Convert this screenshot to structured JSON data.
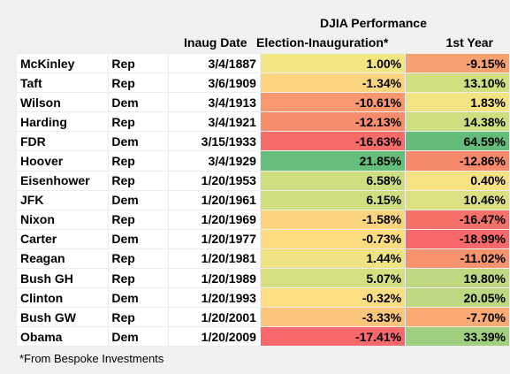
{
  "header": {
    "perf_title": "DJIA Performance",
    "col_inaug": "Inaug Date",
    "col_elec": "Election-Inauguration*",
    "col_first": "1st Year"
  },
  "rows": [
    {
      "name": "McKinley",
      "party": "Rep",
      "date": "3/4/1887",
      "elec": "1.00%",
      "elec_color": "#f2e584",
      "first": "-9.15%",
      "first_color": "#f7a070"
    },
    {
      "name": "Taft",
      "party": "Rep",
      "date": "3/6/1909",
      "elec": "-1.34%",
      "elec_color": "#fbd57f",
      "first": "13.10%",
      "first_color": "#d2df80"
    },
    {
      "name": "Wilson",
      "party": "Dem",
      "date": "3/4/1913",
      "elec": "-10.61%",
      "elec_color": "#f89870",
      "first": "1.83%",
      "first_color": "#f4e383"
    },
    {
      "name": "Harding",
      "party": "Rep",
      "date": "3/4/1921",
      "elec": "-12.13%",
      "elec_color": "#f78d6d",
      "first": "14.38%",
      "first_color": "#cfde80"
    },
    {
      "name": "FDR",
      "party": "Dem",
      "date": "3/15/1933",
      "elec": "-16.63%",
      "elec_color": "#f66c6b",
      "first": "64.59%",
      "first_color": "#64bc7b"
    },
    {
      "name": "Hoover",
      "party": "Rep",
      "date": "3/4/1929",
      "elec": "21.85%",
      "elec_color": "#64bd7b",
      "first": "-12.86%",
      "first_color": "#f78a6d"
    },
    {
      "name": "Eisenhower",
      "party": "Rep",
      "date": "1/20/1953",
      "elec": "6.58%",
      "elec_color": "#cddd80",
      "first": "0.40%",
      "first_color": "#f8e183"
    },
    {
      "name": "JFK",
      "party": "Dem",
      "date": "1/20/1961",
      "elec": "6.15%",
      "elec_color": "#d0de80",
      "first": "10.46%",
      "first_color": "#dbe181"
    },
    {
      "name": "Nixon",
      "party": "Rep",
      "date": "1/20/1969",
      "elec": "-1.58%",
      "elec_color": "#fbd47f",
      "first": "-16.47%",
      "first_color": "#f7716b"
    },
    {
      "name": "Carter",
      "party": "Dem",
      "date": "1/20/1977",
      "elec": "-0.73%",
      "elec_color": "#fcdb81",
      "first": "-18.99%",
      "first_color": "#f8696b"
    },
    {
      "name": "Reagan",
      "party": "Rep",
      "date": "1/20/1981",
      "elec": "1.44%",
      "elec_color": "#eee484",
      "first": "-11.02%",
      "first_color": "#f7936e"
    },
    {
      "name": "Bush GH",
      "party": "Rep",
      "date": "1/20/1989",
      "elec": "5.07%",
      "elec_color": "#d6e081",
      "first": "19.80%",
      "first_color": "#bdd880"
    },
    {
      "name": "Clinton",
      "party": "Dem",
      "date": "1/20/1993",
      "elec": "-0.32%",
      "elec_color": "#fcdf82",
      "first": "20.05%",
      "first_color": "#bcd880"
    },
    {
      "name": "Bush GW",
      "party": "Rep",
      "date": "1/20/2001",
      "elec": "-3.33%",
      "elec_color": "#fbc67c",
      "first": "-7.70%",
      "first_color": "#f9ab73"
    },
    {
      "name": "Obama",
      "party": "Dem",
      "date": "1/20/2009",
      "elec": "-17.41%",
      "elec_color": "#f8696b",
      "first": "33.39%",
      "first_color": "#a0cf7f"
    }
  ],
  "footnote": "*From Bespoke Investments"
}
